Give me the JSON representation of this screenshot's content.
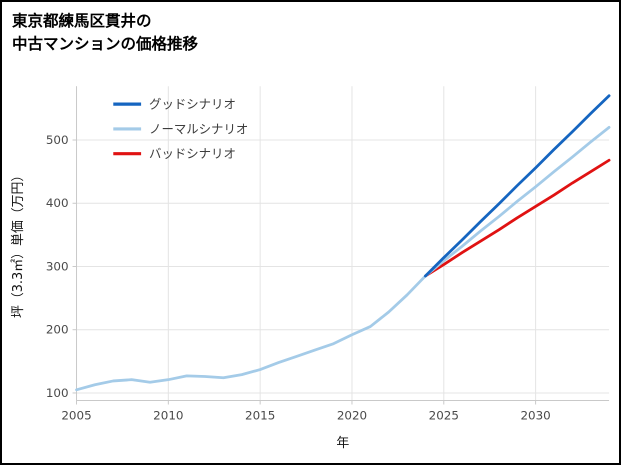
{
  "title": {
    "line1": "東京都練馬区貫井の",
    "line2": "中古マンションの価格推移"
  },
  "chart_data": {
    "type": "line",
    "title": "東京都練馬区貫井の中古マンションの価格推移",
    "xlabel": "年",
    "ylabel": "坪（3.3㎡）単価（万円）",
    "xlim": [
      2005,
      2034
    ],
    "ylim": [
      88,
      585
    ],
    "xticks": [
      2005,
      2010,
      2015,
      2020,
      2025,
      2030
    ],
    "yticks": [
      100,
      200,
      300,
      400,
      500
    ],
    "grid": true,
    "grid_color": "#e4e4e4",
    "spine_color": "#c9c9c9",
    "background_color": "#ffffff",
    "legend_position": "top-left",
    "series": [
      {
        "id": "good",
        "name": "グッドシナリオ",
        "color": "#1565c0",
        "x": [
          2024,
          2025,
          2026,
          2027,
          2028,
          2029,
          2030,
          2031,
          2032,
          2033,
          2034
        ],
        "values": [
          285,
          314,
          342,
          371,
          399,
          428,
          456,
          485,
          513,
          542,
          570
        ]
      },
      {
        "id": "normal",
        "name": "ノーマルシナリオ",
        "color": "#a4cbe8",
        "x": [
          2005,
          2006,
          2007,
          2008,
          2009,
          2010,
          2011,
          2012,
          2013,
          2014,
          2015,
          2016,
          2017,
          2018,
          2019,
          2020,
          2021,
          2022,
          2023,
          2024,
          2025,
          2026,
          2027,
          2028,
          2029,
          2030,
          2031,
          2032,
          2033,
          2034
        ],
        "values": [
          105,
          113,
          119,
          121,
          117,
          121,
          127,
          126,
          124,
          129,
          137,
          148,
          158,
          168,
          178,
          192,
          205,
          228,
          255,
          285,
          309,
          332,
          356,
          379,
          403,
          426,
          450,
          473,
          497,
          520
        ]
      },
      {
        "id": "bad",
        "name": "バッドシナリオ",
        "color": "#e01212",
        "x": [
          2024,
          2025,
          2026,
          2027,
          2028,
          2029,
          2030,
          2031,
          2032,
          2033,
          2034
        ],
        "values": [
          285,
          303,
          322,
          340,
          358,
          377,
          395,
          413,
          432,
          450,
          468
        ]
      }
    ]
  }
}
